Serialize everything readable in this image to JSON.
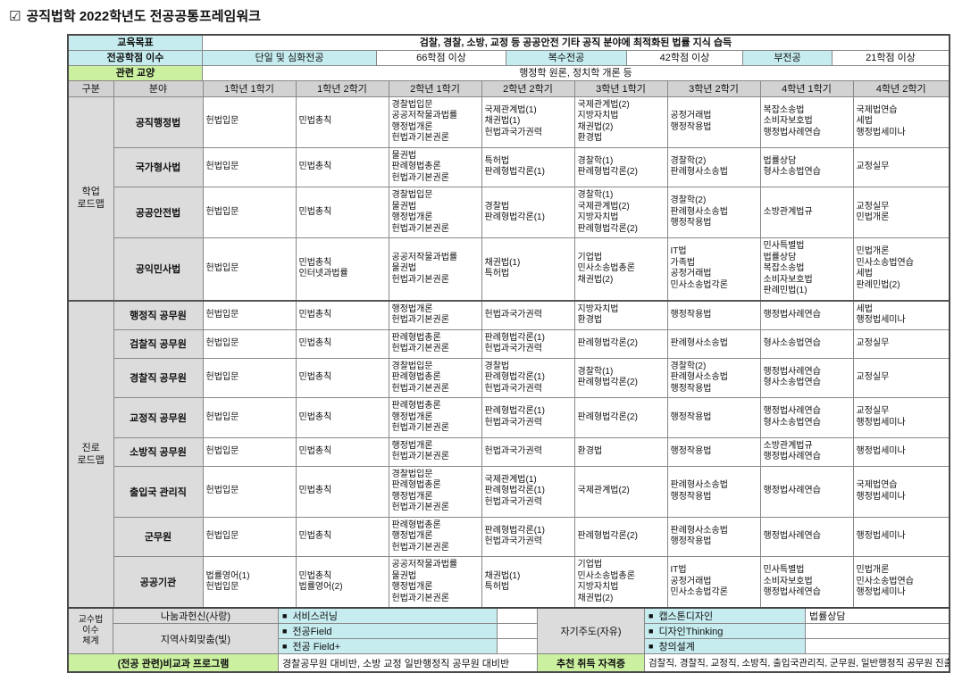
{
  "title": {
    "icon": "checked-box",
    "text": "공직법학 2022학년도 전공공통프레임워크"
  },
  "colors": {
    "cyan": "#c6ecef",
    "green": "#caf0a0",
    "label_gray": "#dcdcdc",
    "header_gray": "#d2d2d2"
  },
  "top": {
    "goal_label": "교육목표",
    "goal_value": "검찰, 경찰, 소방, 교정 등 공공안전 기타 공직 분야에 최적화된 법률 지식 습득",
    "credits_label": "전공학점 이수",
    "credits_cells": [
      {
        "text": "단일 및 심화전공",
        "style": "cyan"
      },
      {
        "text": "66학점 이상",
        "style": "white"
      },
      {
        "text": "복수전공",
        "style": "cyan"
      },
      {
        "text": "42학점 이상",
        "style": "white"
      },
      {
        "text": "부전공",
        "style": "cyan"
      },
      {
        "text": "21학점 이상",
        "style": "white"
      }
    ],
    "liberal_label": "관련 교양",
    "liberal_value": "행정학 원론, 정치학 개론 등"
  },
  "columns": [
    "구분",
    "분야",
    "1학년 1학기",
    "1학년 2학기",
    "2학년 1학기",
    "2학년 2학기",
    "3학년 1학기",
    "3학년 2학기",
    "4학년 1학기",
    "4학년 2학기"
  ],
  "roadmaps": [
    {
      "group": "학업\n로드맵",
      "rows": [
        {
          "field": "공직행정법",
          "semesters": [
            [
              "헌법입문"
            ],
            [
              "민법총칙"
            ],
            [
              "경찰법입문",
              "공공저작물과법률",
              "행정법개론",
              "헌법과기본권론"
            ],
            [
              "국제관계법(1)",
              "채권법(1)",
              "헌법과국가권력"
            ],
            [
              "국제관계법(2)",
              "지방자치법",
              "채권법(2)",
              "환경법"
            ],
            [
              "공정거래법",
              "행정작용법"
            ],
            [
              "복잡소송법",
              "소비자보호법",
              "행정법사례연습"
            ],
            [
              "국제법연습",
              "세법",
              "행정법세미나"
            ]
          ]
        },
        {
          "field": "국가형사법",
          "semesters": [
            [
              "헌법입문"
            ],
            [
              "민법총칙"
            ],
            [
              "물권법",
              "판례형법총론",
              "헌법과기본권론"
            ],
            [
              "특허법",
              "판례형법각론(1)"
            ],
            [
              "경찰학(1)",
              "판례형법각론(2)"
            ],
            [
              "경찰학(2)",
              "판례형사소송법"
            ],
            [
              "법률상담",
              "형사소송법연습"
            ],
            [
              "교정실무"
            ]
          ]
        },
        {
          "field": "공공안전법",
          "semesters": [
            [
              "헌법입문"
            ],
            [
              "민법총칙"
            ],
            [
              "경찰법입문",
              "물권법",
              "행정법개론",
              "헌법과기본권론"
            ],
            [
              "경찰법",
              "판례형법각론(1)"
            ],
            [
              "경찰학(1)",
              "국제관계법(2)",
              "지방자치법",
              "판례형법각론(2)"
            ],
            [
              "경찰학(2)",
              "판례형사소송법",
              "행정작용법"
            ],
            [
              "소방관계법규"
            ],
            [
              "교정실무",
              "민법개론"
            ]
          ]
        },
        {
          "field": "공익민사법",
          "semesters": [
            [
              "헌법입문"
            ],
            [
              "민법총칙",
              "인터넷과법률"
            ],
            [
              "공공저작물과법률",
              "물권법",
              "헌법과기본권론"
            ],
            [
              "채권법(1)",
              "특허법"
            ],
            [
              "기업법",
              "민사소송법총론",
              "채권법(2)"
            ],
            [
              "IT법",
              "가족법",
              "공정거래법",
              "민사소송법각론"
            ],
            [
              "민사특별법",
              "법률상담",
              "복잡소송법",
              "소비자보호법",
              "판례민법(1)"
            ],
            [
              "민법개론",
              "민사소송법연습",
              "세법",
              "판례민법(2)"
            ]
          ]
        }
      ]
    },
    {
      "group": "진로\n로드맵",
      "rows": [
        {
          "field": "행정직 공무원",
          "semesters": [
            [
              "헌법입문"
            ],
            [
              "민법총칙"
            ],
            [
              "행정법개론",
              "헌법과기본권론"
            ],
            [
              "헌법과국가권력"
            ],
            [
              "지방자치법",
              "환경법"
            ],
            [
              "행정작용법"
            ],
            [
              "행정법사례연습"
            ],
            [
              "세법",
              "행정법세미나"
            ]
          ]
        },
        {
          "field": "검찰직 공무원",
          "semesters": [
            [
              "헌법입문"
            ],
            [
              "민법총칙"
            ],
            [
              "판례형법총론",
              "헌법과기본권론"
            ],
            [
              "판례형법각론(1)",
              "헌법과국가권력"
            ],
            [
              "판례형법각론(2)"
            ],
            [
              "판례형사소송법"
            ],
            [
              "형사소송법연습"
            ],
            [
              "교정실무"
            ]
          ]
        },
        {
          "field": "경찰직 공무원",
          "semesters": [
            [
              "헌법입문"
            ],
            [
              "민법총칙"
            ],
            [
              "경찰법입문",
              "판례형법총론",
              "헌법과기본권론"
            ],
            [
              "경찰법",
              "판례형법각론(1)",
              "헌법과국가권력"
            ],
            [
              "경찰학(1)",
              "판례형법각론(2)"
            ],
            [
              "경찰학(2)",
              "판례형사소송법",
              "행정작용법"
            ],
            [
              "행정법사례연습",
              "형사소송법연습"
            ],
            [
              "교정실무"
            ]
          ]
        },
        {
          "field": "교정직 공무원",
          "semesters": [
            [
              "헌법입문"
            ],
            [
              "민법총칙"
            ],
            [
              "판례형법총론",
              "행정법개론",
              "헌법과기본권론"
            ],
            [
              "판례형법각론(1)",
              "헌법과국가권력"
            ],
            [
              "판례형법각론(2)"
            ],
            [
              "행정작용법"
            ],
            [
              "행정법사례연습",
              "형사소송법연습"
            ],
            [
              "교정실무",
              "행정법세미나"
            ]
          ]
        },
        {
          "field": "소방직 공무원",
          "semesters": [
            [
              "헌법입문"
            ],
            [
              "민법총칙"
            ],
            [
              "행정법개론",
              "헌법과기본권론"
            ],
            [
              "헌법과국가권력"
            ],
            [
              "환경법"
            ],
            [
              "행정작용법"
            ],
            [
              "소방관계법규",
              "행정법사례연습"
            ],
            [
              "행정법세미나"
            ]
          ]
        },
        {
          "field": "출입국 관리직",
          "semesters": [
            [
              "헌법입문"
            ],
            [
              "민법총칙"
            ],
            [
              "경찰법입문",
              "판례형법총론",
              "행정법개론",
              "헌법과기본권론"
            ],
            [
              "국제관계법(1)",
              "판례형법각론(1)",
              "헌법과국가권력"
            ],
            [
              "국제관계법(2)"
            ],
            [
              "판례형사소송법",
              "행정작용법"
            ],
            [
              "행정법사례연습"
            ],
            [
              "국제법연습",
              "행정법세미나"
            ]
          ]
        },
        {
          "field": "군무원",
          "semesters": [
            [
              "헌법입문"
            ],
            [
              "민법총칙"
            ],
            [
              "판례형법총론",
              "행정법개론",
              "헌법과기본권론"
            ],
            [
              "판례형법각론(1)",
              "헌법과국가권력"
            ],
            [
              "판례형법각론(2)"
            ],
            [
              "판례형사소송법",
              "행정작용법"
            ],
            [
              "행정법사례연습"
            ],
            [
              "행정법세미나"
            ]
          ]
        },
        {
          "field": "공공기관",
          "semesters": [
            [
              "법률영어(1)",
              "헌법입문"
            ],
            [
              "민법총칙",
              "법률영어(2)"
            ],
            [
              "공공저작물과법률",
              "물권법",
              "행정법개론",
              "헌법과기본권론"
            ],
            [
              "채권법(1)",
              "특허법"
            ],
            [
              "기업법",
              "민사소송법총론",
              "지방자치법",
              "채권법(2)"
            ],
            [
              "IT법",
              "공정거래법",
              "민사소송법각론"
            ],
            [
              "민사특별법",
              "소비자보호법",
              "행정법사례연습"
            ],
            [
              "민법개론",
              "민사소송법연습",
              "행정법세미나"
            ]
          ]
        }
      ]
    }
  ],
  "bottom": {
    "system_label": "교수법\n이수\n체계",
    "share_label": "나눔과헌신(사랑)",
    "community_label": "지역사회맞춤(빛)",
    "self_label": "자기주도(자유)",
    "bullet": "■",
    "items_left": [
      "서비스러닝",
      "전공Field",
      "전공 Field+"
    ],
    "items_right": [
      "캡스톤디자인",
      "디자인Thinking",
      "창의설계"
    ],
    "right_note": "법률상담",
    "extracurricular_label": "(전공 관련)비교과 프로그램",
    "extracurricular_value": "경찰공무원 대비반, 소방 교정 일반행정직 공무원 대비반",
    "license_label": "추천 취득 자격증",
    "license_value": "검찰직, 경찰직, 교정직, 소방직, 출입국관리직, 군무원, 일반행정직 공무원 진출"
  }
}
